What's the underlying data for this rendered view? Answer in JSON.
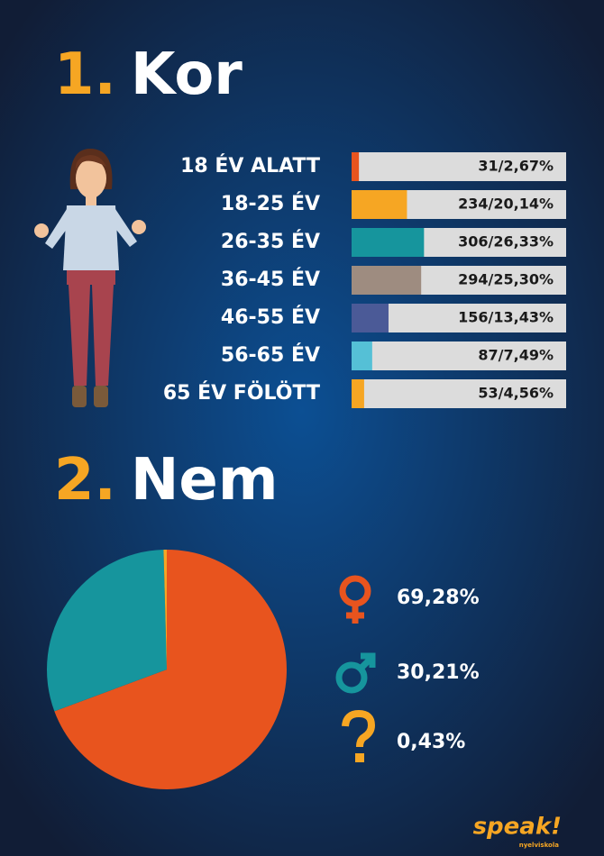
{
  "chart_data": [
    {
      "type": "hbar",
      "number": "1.",
      "title": "Kor",
      "categories": [
        "18 ÉV ALATT",
        "18-25 ÉV",
        "26-35 ÉV",
        "36-45 ÉV",
        "46-55 ÉV",
        "56-65 ÉV",
        "65 ÉV FÖLÖTT"
      ],
      "values": [
        2.67,
        20.14,
        26.33,
        25.3,
        13.43,
        7.49,
        4.56
      ],
      "value_labels": [
        "31/2,67%",
        "234/20,14%",
        "306/26,33%",
        "294/25,30%",
        "156/13,43%",
        "87/7,49%",
        "53/4,56%"
      ],
      "colors": [
        "#e8541e",
        "#f6a623",
        "#16959d",
        "#9e8c80",
        "#4b5a97",
        "#55c0d6",
        "#f6a623"
      ],
      "xlim": [
        0,
        78
      ]
    },
    {
      "type": "pie",
      "number": "2.",
      "title": "Nem",
      "values": [
        69.28,
        30.21,
        0.43
      ],
      "value_labels": [
        "69,28%",
        "30,21%",
        "0,43%"
      ],
      "colors": [
        "#e8541e",
        "#16959d",
        "#f6a623"
      ]
    }
  ],
  "logo": "speak!",
  "logo_sub": "nyelviskola"
}
